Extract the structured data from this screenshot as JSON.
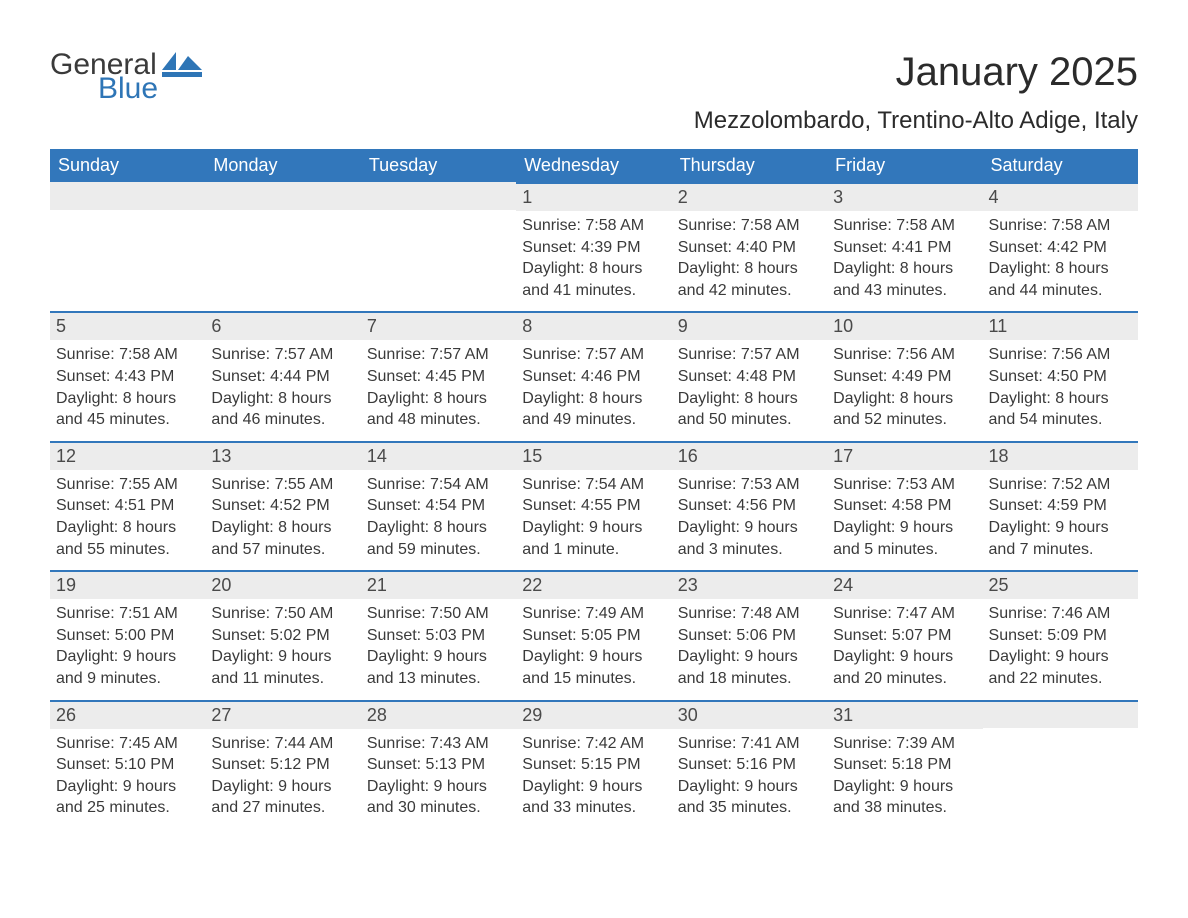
{
  "logo": {
    "word1": "General",
    "word2": "Blue"
  },
  "title": "January 2025",
  "location": "Mezzolombardo, Trentino-Alto Adige, Italy",
  "colors": {
    "header_bg": "#3277bb",
    "header_text": "#ffffff",
    "daynum_bg": "#ececec",
    "daynum_border": "#3277bb",
    "body_text": "#3a3a3a",
    "logo_blue": "#2e75b6"
  },
  "weekdays": [
    "Sunday",
    "Monday",
    "Tuesday",
    "Wednesday",
    "Thursday",
    "Friday",
    "Saturday"
  ],
  "weeks": [
    [
      null,
      null,
      null,
      {
        "n": "1",
        "sunrise": "Sunrise: 7:58 AM",
        "sunset": "Sunset: 4:39 PM",
        "d1": "Daylight: 8 hours",
        "d2": "and 41 minutes."
      },
      {
        "n": "2",
        "sunrise": "Sunrise: 7:58 AM",
        "sunset": "Sunset: 4:40 PM",
        "d1": "Daylight: 8 hours",
        "d2": "and 42 minutes."
      },
      {
        "n": "3",
        "sunrise": "Sunrise: 7:58 AM",
        "sunset": "Sunset: 4:41 PM",
        "d1": "Daylight: 8 hours",
        "d2": "and 43 minutes."
      },
      {
        "n": "4",
        "sunrise": "Sunrise: 7:58 AM",
        "sunset": "Sunset: 4:42 PM",
        "d1": "Daylight: 8 hours",
        "d2": "and 44 minutes."
      }
    ],
    [
      {
        "n": "5",
        "sunrise": "Sunrise: 7:58 AM",
        "sunset": "Sunset: 4:43 PM",
        "d1": "Daylight: 8 hours",
        "d2": "and 45 minutes."
      },
      {
        "n": "6",
        "sunrise": "Sunrise: 7:57 AM",
        "sunset": "Sunset: 4:44 PM",
        "d1": "Daylight: 8 hours",
        "d2": "and 46 minutes."
      },
      {
        "n": "7",
        "sunrise": "Sunrise: 7:57 AM",
        "sunset": "Sunset: 4:45 PM",
        "d1": "Daylight: 8 hours",
        "d2": "and 48 minutes."
      },
      {
        "n": "8",
        "sunrise": "Sunrise: 7:57 AM",
        "sunset": "Sunset: 4:46 PM",
        "d1": "Daylight: 8 hours",
        "d2": "and 49 minutes."
      },
      {
        "n": "9",
        "sunrise": "Sunrise: 7:57 AM",
        "sunset": "Sunset: 4:48 PM",
        "d1": "Daylight: 8 hours",
        "d2": "and 50 minutes."
      },
      {
        "n": "10",
        "sunrise": "Sunrise: 7:56 AM",
        "sunset": "Sunset: 4:49 PM",
        "d1": "Daylight: 8 hours",
        "d2": "and 52 minutes."
      },
      {
        "n": "11",
        "sunrise": "Sunrise: 7:56 AM",
        "sunset": "Sunset: 4:50 PM",
        "d1": "Daylight: 8 hours",
        "d2": "and 54 minutes."
      }
    ],
    [
      {
        "n": "12",
        "sunrise": "Sunrise: 7:55 AM",
        "sunset": "Sunset: 4:51 PM",
        "d1": "Daylight: 8 hours",
        "d2": "and 55 minutes."
      },
      {
        "n": "13",
        "sunrise": "Sunrise: 7:55 AM",
        "sunset": "Sunset: 4:52 PM",
        "d1": "Daylight: 8 hours",
        "d2": "and 57 minutes."
      },
      {
        "n": "14",
        "sunrise": "Sunrise: 7:54 AM",
        "sunset": "Sunset: 4:54 PM",
        "d1": "Daylight: 8 hours",
        "d2": "and 59 minutes."
      },
      {
        "n": "15",
        "sunrise": "Sunrise: 7:54 AM",
        "sunset": "Sunset: 4:55 PM",
        "d1": "Daylight: 9 hours",
        "d2": "and 1 minute."
      },
      {
        "n": "16",
        "sunrise": "Sunrise: 7:53 AM",
        "sunset": "Sunset: 4:56 PM",
        "d1": "Daylight: 9 hours",
        "d2": "and 3 minutes."
      },
      {
        "n": "17",
        "sunrise": "Sunrise: 7:53 AM",
        "sunset": "Sunset: 4:58 PM",
        "d1": "Daylight: 9 hours",
        "d2": "and 5 minutes."
      },
      {
        "n": "18",
        "sunrise": "Sunrise: 7:52 AM",
        "sunset": "Sunset: 4:59 PM",
        "d1": "Daylight: 9 hours",
        "d2": "and 7 minutes."
      }
    ],
    [
      {
        "n": "19",
        "sunrise": "Sunrise: 7:51 AM",
        "sunset": "Sunset: 5:00 PM",
        "d1": "Daylight: 9 hours",
        "d2": "and 9 minutes."
      },
      {
        "n": "20",
        "sunrise": "Sunrise: 7:50 AM",
        "sunset": "Sunset: 5:02 PM",
        "d1": "Daylight: 9 hours",
        "d2": "and 11 minutes."
      },
      {
        "n": "21",
        "sunrise": "Sunrise: 7:50 AM",
        "sunset": "Sunset: 5:03 PM",
        "d1": "Daylight: 9 hours",
        "d2": "and 13 minutes."
      },
      {
        "n": "22",
        "sunrise": "Sunrise: 7:49 AM",
        "sunset": "Sunset: 5:05 PM",
        "d1": "Daylight: 9 hours",
        "d2": "and 15 minutes."
      },
      {
        "n": "23",
        "sunrise": "Sunrise: 7:48 AM",
        "sunset": "Sunset: 5:06 PM",
        "d1": "Daylight: 9 hours",
        "d2": "and 18 minutes."
      },
      {
        "n": "24",
        "sunrise": "Sunrise: 7:47 AM",
        "sunset": "Sunset: 5:07 PM",
        "d1": "Daylight: 9 hours",
        "d2": "and 20 minutes."
      },
      {
        "n": "25",
        "sunrise": "Sunrise: 7:46 AM",
        "sunset": "Sunset: 5:09 PM",
        "d1": "Daylight: 9 hours",
        "d2": "and 22 minutes."
      }
    ],
    [
      {
        "n": "26",
        "sunrise": "Sunrise: 7:45 AM",
        "sunset": "Sunset: 5:10 PM",
        "d1": "Daylight: 9 hours",
        "d2": "and 25 minutes."
      },
      {
        "n": "27",
        "sunrise": "Sunrise: 7:44 AM",
        "sunset": "Sunset: 5:12 PM",
        "d1": "Daylight: 9 hours",
        "d2": "and 27 minutes."
      },
      {
        "n": "28",
        "sunrise": "Sunrise: 7:43 AM",
        "sunset": "Sunset: 5:13 PM",
        "d1": "Daylight: 9 hours",
        "d2": "and 30 minutes."
      },
      {
        "n": "29",
        "sunrise": "Sunrise: 7:42 AM",
        "sunset": "Sunset: 5:15 PM",
        "d1": "Daylight: 9 hours",
        "d2": "and 33 minutes."
      },
      {
        "n": "30",
        "sunrise": "Sunrise: 7:41 AM",
        "sunset": "Sunset: 5:16 PM",
        "d1": "Daylight: 9 hours",
        "d2": "and 35 minutes."
      },
      {
        "n": "31",
        "sunrise": "Sunrise: 7:39 AM",
        "sunset": "Sunset: 5:18 PM",
        "d1": "Daylight: 9 hours",
        "d2": "and 38 minutes."
      },
      null
    ]
  ]
}
